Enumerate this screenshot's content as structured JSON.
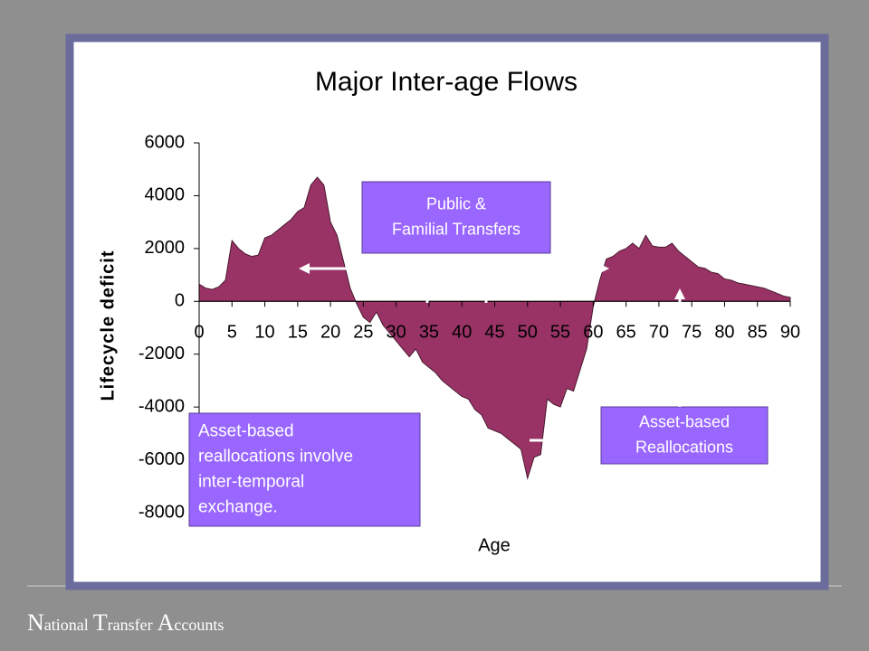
{
  "chart_data": {
    "type": "area",
    "title": "Major Inter-age Flows",
    "x_label": "Age",
    "y_label": "Lifecycle deficit",
    "x": [
      0,
      1,
      2,
      3,
      4,
      5,
      6,
      7,
      8,
      9,
      10,
      11,
      12,
      13,
      14,
      15,
      16,
      17,
      18,
      19,
      20,
      21,
      22,
      23,
      24,
      25,
      26,
      27,
      28,
      29,
      30,
      31,
      32,
      33,
      34,
      35,
      36,
      37,
      38,
      39,
      40,
      41,
      42,
      43,
      44,
      45,
      46,
      47,
      48,
      49,
      50,
      51,
      52,
      53,
      54,
      55,
      56,
      57,
      58,
      59,
      60,
      61,
      62,
      63,
      64,
      65,
      66,
      67,
      68,
      69,
      70,
      71,
      72,
      73,
      74,
      75,
      76,
      77,
      78,
      79,
      80,
      81,
      82,
      83,
      84,
      85,
      86,
      87,
      88,
      89,
      90
    ],
    "values": [
      650,
      500,
      450,
      550,
      800,
      2300,
      2000,
      1800,
      1700,
      1750,
      2400,
      2500,
      2700,
      2900,
      3100,
      3400,
      3550,
      4400,
      4700,
      4400,
      3000,
      2500,
      1500,
      500,
      -100,
      -600,
      -800,
      -400,
      -900,
      -1200,
      -1500,
      -1800,
      -2100,
      -1800,
      -2300,
      -2500,
      -2700,
      -3000,
      -3200,
      -3400,
      -3600,
      -3700,
      -4100,
      -4300,
      -4800,
      -4900,
      -5000,
      -5200,
      -5400,
      -5600,
      -6700,
      -5900,
      -5800,
      -3700,
      -3900,
      -4000,
      -3300,
      -3400,
      -2600,
      -1800,
      -200,
      800,
      1600,
      1700,
      1900,
      2000,
      2200,
      2000,
      2500,
      2100,
      2050,
      2050,
      2200,
      1900,
      1700,
      1500,
      1300,
      1250,
      1100,
      1050,
      850,
      800,
      700,
      650,
      600,
      550,
      500,
      400,
      300,
      200,
      150
    ],
    "color": "#993366",
    "xlim": [
      0,
      90
    ],
    "ylim": [
      -8000,
      6000
    ],
    "xticks": [
      0,
      5,
      10,
      15,
      20,
      25,
      30,
      35,
      40,
      45,
      50,
      55,
      60,
      65,
      70,
      75,
      80,
      85,
      90
    ],
    "yticks": [
      -8000,
      -6000,
      -4000,
      -2000,
      0,
      2000,
      4000,
      6000
    ],
    "annotations": [
      [
        "Public &",
        "Familial Transfers"
      ],
      [
        "Asset-based",
        "Reallocations"
      ],
      [
        "Asset-based",
        "reallocations involve",
        "inter-temporal",
        "exchange."
      ]
    ]
  },
  "footer": [
    "National",
    "Transfer",
    "Accounts"
  ]
}
